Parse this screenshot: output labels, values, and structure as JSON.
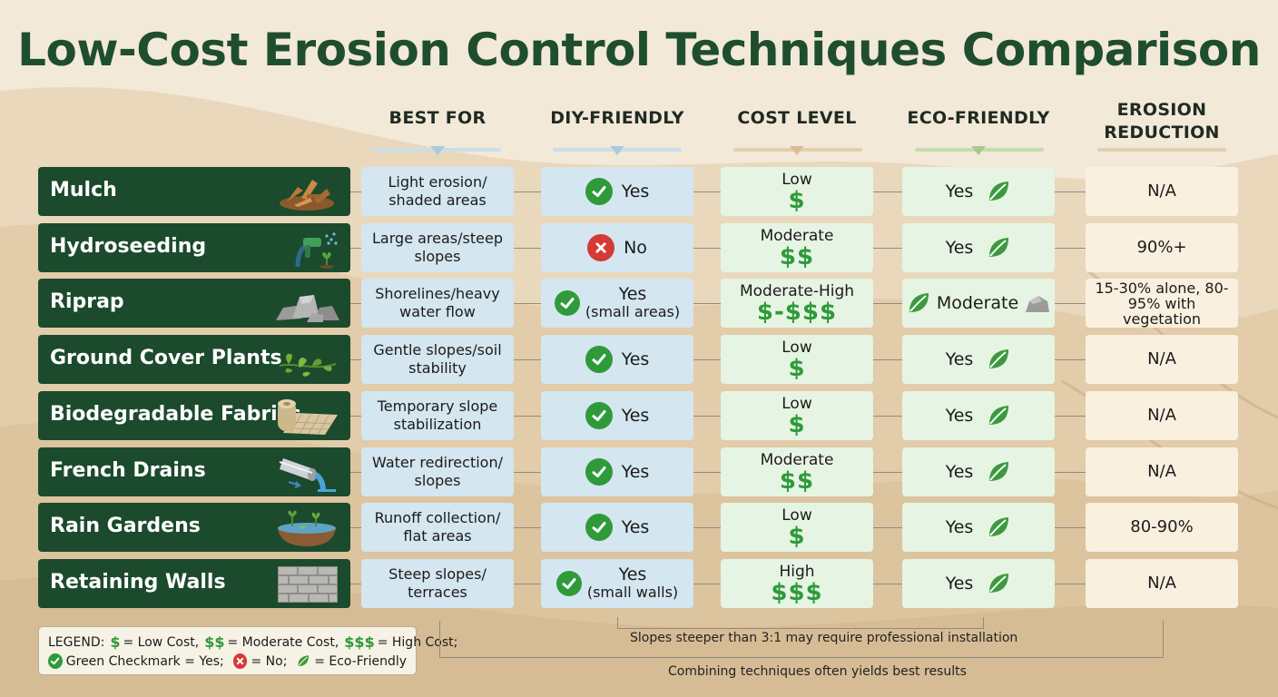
{
  "title": "Low-Cost Erosion Control Techniques Comparison",
  "columns": {
    "best_for": "BEST FOR",
    "diy": "DIY-FRIENDLY",
    "cost": "COST LEVEL",
    "eco": "ECO-FRIENDLY",
    "reduction_line1": "EROSION",
    "reduction_line2": "REDUCTION"
  },
  "rows": [
    {
      "method": "Mulch",
      "icon": "wood-chips-icon",
      "best_line1": "Light erosion/",
      "best_line2": "shaded areas",
      "diy": "Yes",
      "diy_sub": "",
      "diy_type": "check",
      "cost_label": "Low",
      "cost_sign": "$",
      "eco": "Yes",
      "reduction": "N/A"
    },
    {
      "method": "Hydroseeding",
      "icon": "spray-hose-icon",
      "best_line1": "Large areas/steep",
      "best_line2": "slopes",
      "diy": "No",
      "diy_sub": "",
      "diy_type": "x",
      "cost_label": "Moderate",
      "cost_sign": "$$",
      "eco": "Yes",
      "reduction": "90%+"
    },
    {
      "method": "Riprap",
      "icon": "rocks-icon",
      "best_line1": "Shorelines/heavy",
      "best_line2": "water flow",
      "diy": "Yes",
      "diy_sub": "(small areas)",
      "diy_type": "check",
      "cost_label": "Moderate-High",
      "cost_sign": "$-$$$",
      "eco": "Moderate",
      "reduction": "15-30% alone, 80-95% with vegetation"
    },
    {
      "method": "Ground Cover Plants",
      "icon": "plants-icon",
      "best_line1": "Gentle slopes/soil",
      "best_line2": "stability",
      "diy": "Yes",
      "diy_sub": "",
      "diy_type": "check",
      "cost_label": "Low",
      "cost_sign": "$",
      "eco": "Yes",
      "reduction": "N/A"
    },
    {
      "method": "Biodegradable Fabrics",
      "icon": "fabric-roll-icon",
      "best_line1": "Temporary slope",
      "best_line2": "stabilization",
      "diy": "Yes",
      "diy_sub": "",
      "diy_type": "check",
      "cost_label": "Low",
      "cost_sign": "$",
      "eco": "Yes",
      "reduction": "N/A"
    },
    {
      "method": "French Drains",
      "icon": "drain-pipe-icon",
      "best_line1": "Water redirection/",
      "best_line2": "slopes",
      "diy": "Yes",
      "diy_sub": "",
      "diy_type": "check",
      "cost_label": "Moderate",
      "cost_sign": "$$",
      "eco": "Yes",
      "reduction": "N/A"
    },
    {
      "method": "Rain Gardens",
      "icon": "rain-garden-icon",
      "best_line1": "Runoff collection/",
      "best_line2": "flat areas",
      "diy": "Yes",
      "diy_sub": "",
      "diy_type": "check",
      "cost_label": "Low",
      "cost_sign": "$",
      "eco": "Yes",
      "reduction": "80-90%"
    },
    {
      "method": "Retaining Walls",
      "icon": "brick-wall-icon",
      "best_line1": "Steep slopes/",
      "best_line2": "terraces",
      "diy": "Yes",
      "diy_sub": "(small walls)",
      "diy_type": "check",
      "cost_label": "High",
      "cost_sign": "$$$",
      "eco": "Yes",
      "reduction": "N/A"
    }
  ],
  "legend": {
    "prefix": "LEGEND:",
    "low_sign": "$",
    "low_text": "= Low Cost,",
    "mod_sign": "$$",
    "mod_text": "= Moderate Cost,",
    "high_sign": "$$$",
    "high_text": "= High Cost;",
    "check_text": "Green Checkmark = Yes;",
    "x_text": "= No;",
    "leaf_text": "= Eco-Friendly"
  },
  "notes": {
    "slopes": "Slopes steeper than 3:1 may require professional installation",
    "combining": "Combining techniques often yields best results"
  },
  "colors": {
    "title": "#1f4e2f",
    "method_bg": "#1c4a2c",
    "check": "#2f9a3a",
    "x": "#d53a36",
    "best_bg": "#d4e6ef",
    "cost_bg": "#e6f4e3",
    "reduction_bg": "#faf0df"
  }
}
